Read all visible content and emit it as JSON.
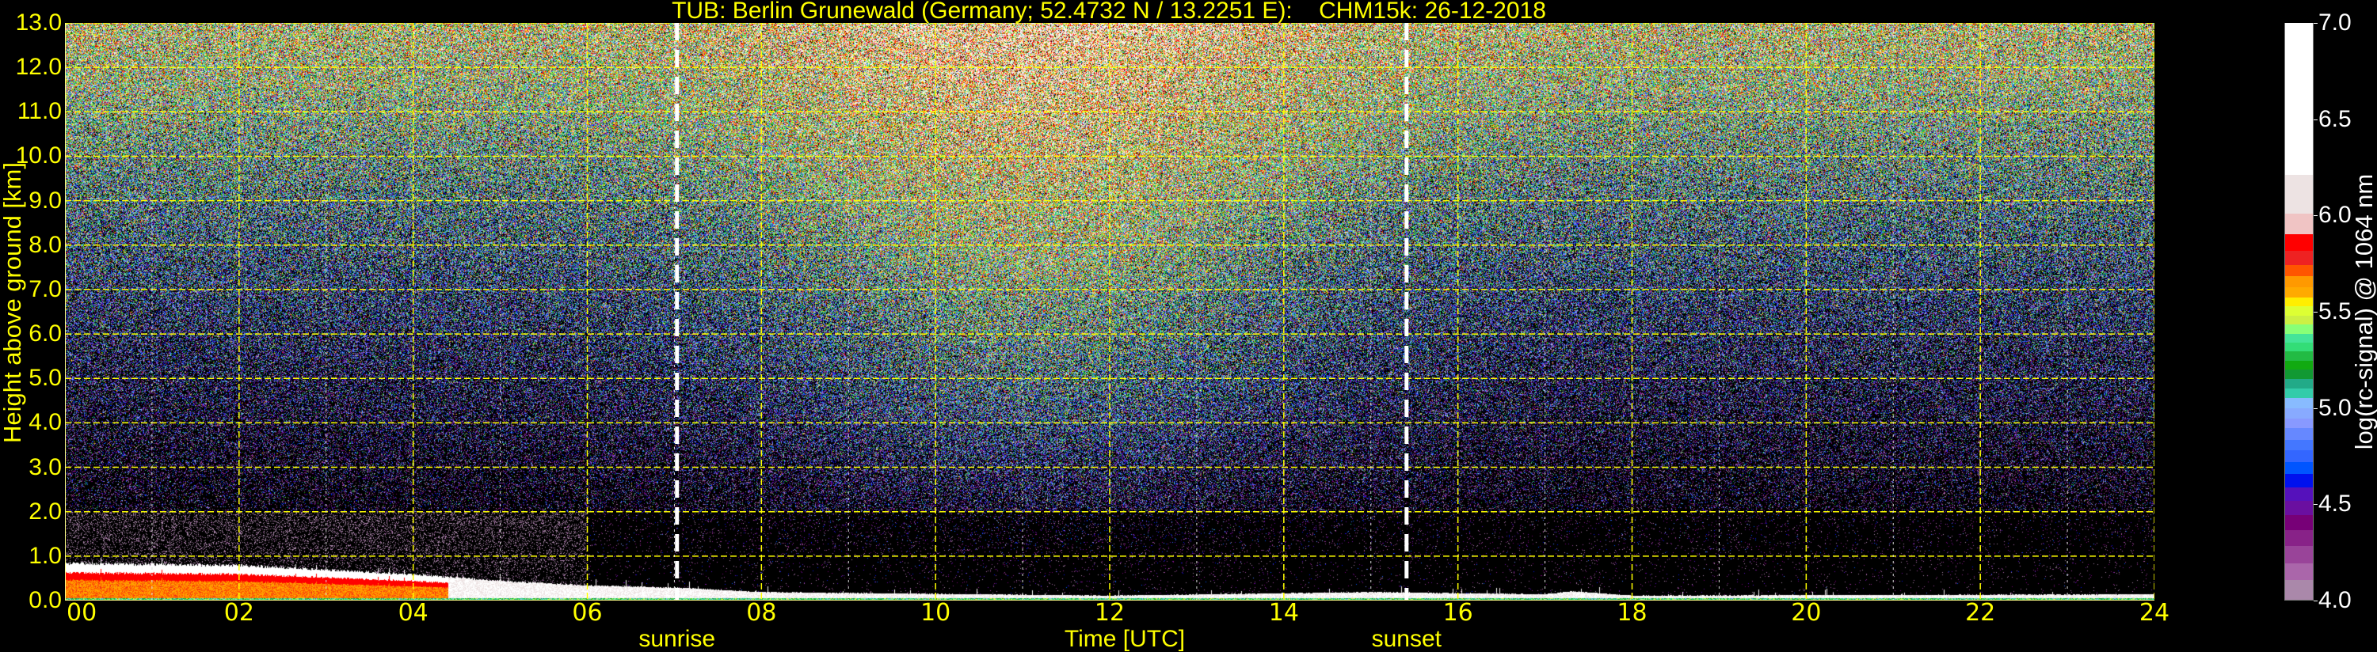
{
  "chart_data": {
    "type": "heatmap",
    "title": "TUB: Berlin Grunewald (Germany; 52.4732 N / 13.2251 E):    CHM15k: 26-12-2018",
    "xlabel": "Time [UTC]",
    "ylabel": "Height above ground [km]",
    "xlim": [
      0,
      24
    ],
    "ylim": [
      0,
      13
    ],
    "xticks": [
      "00",
      "02",
      "04",
      "06",
      "08",
      "10",
      "12",
      "14",
      "16",
      "18",
      "20",
      "22",
      "24"
    ],
    "xtick_values": [
      0,
      2,
      4,
      6,
      8,
      10,
      12,
      14,
      16,
      18,
      20,
      22,
      24
    ],
    "yticks": [
      "0.0",
      "1.0",
      "2.0",
      "3.0",
      "4.0",
      "5.0",
      "6.0",
      "7.0",
      "8.0",
      "9.0",
      "10.0",
      "11.0",
      "12.0",
      "13.0"
    ],
    "ytick_values": [
      0,
      1,
      2,
      3,
      4,
      5,
      6,
      7,
      8,
      9,
      10,
      11,
      12,
      13
    ],
    "grid": true,
    "events": [
      {
        "label": "sunrise",
        "time_hours": 7.03
      },
      {
        "label": "sunset",
        "time_hours": 15.41
      }
    ],
    "boundary_layer_top_km": [
      [
        0,
        0.85
      ],
      [
        2,
        0.8
      ],
      [
        4,
        0.6
      ],
      [
        5,
        0.45
      ],
      [
        6,
        0.35
      ],
      [
        7,
        0.3
      ],
      [
        8,
        0.2
      ],
      [
        12,
        0.12
      ],
      [
        15,
        0.2
      ],
      [
        17,
        0.15
      ],
      [
        17.3,
        0.22
      ],
      [
        18,
        0.12
      ],
      [
        24,
        0.15
      ]
    ],
    "colorbar": {
      "label": "log(rc-signal) @ 1064 nm",
      "range": [
        4.0,
        7.0
      ],
      "ticks": [
        "4.0",
        "4.5",
        "5.0",
        "5.5",
        "6.0",
        "6.5",
        "7.0"
      ],
      "tick_values": [
        4.0,
        4.5,
        5.0,
        5.5,
        6.0,
        6.5,
        7.0
      ],
      "levels": [
        [
          4.0,
          "#aa88aa"
        ],
        [
          4.102,
          "#aa66aa"
        ],
        [
          4.188,
          "#994499"
        ],
        [
          4.281,
          "#882288"
        ],
        [
          4.363,
          "#770077"
        ],
        [
          4.439,
          "#6a0fa0"
        ],
        [
          4.515,
          "#5511bb"
        ],
        [
          4.586,
          "#0011ee"
        ],
        [
          4.655,
          "#0055ff"
        ],
        [
          4.718,
          "#3366ff"
        ],
        [
          4.778,
          "#4477ff"
        ],
        [
          4.832,
          "#6688ff"
        ],
        [
          4.893,
          "#8899ff"
        ],
        [
          4.943,
          "#88aaff"
        ],
        [
          4.997,
          "#88bbff"
        ],
        [
          5.051,
          "#33ccaa"
        ],
        [
          5.1,
          "#22aa88"
        ],
        [
          5.148,
          "#119933"
        ],
        [
          5.198,
          "#11aa11"
        ],
        [
          5.243,
          "#22bb44"
        ],
        [
          5.293,
          "#33dd77"
        ],
        [
          5.338,
          "#44e499"
        ],
        [
          5.383,
          "#88ff77"
        ],
        [
          5.433,
          "#ccf044"
        ],
        [
          5.481,
          "#ddff33"
        ],
        [
          5.53,
          "#ffee00"
        ],
        [
          5.576,
          "#ffaa00"
        ],
        [
          5.628,
          "#ff9900"
        ],
        [
          5.684,
          "#ff5500"
        ],
        [
          5.742,
          "#ee2222"
        ],
        [
          5.816,
          "#ff0000"
        ],
        [
          5.902,
          "#f0c4c4"
        ],
        [
          6.012,
          "#ede3e3"
        ],
        [
          6.215,
          "#ffffff"
        ]
      ]
    }
  },
  "colors": {
    "axis_text": "#ffff00",
    "grid": "#ffff00",
    "background": "#000000",
    "colorbar_text": "#ffffff"
  }
}
